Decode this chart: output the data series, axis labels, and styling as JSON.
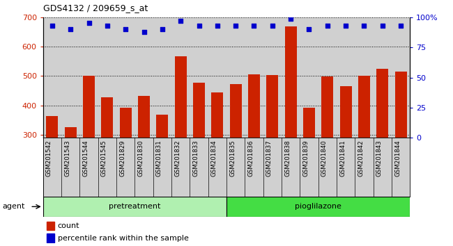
{
  "title": "GDS4132 / 209659_s_at",
  "samples": [
    "GSM201542",
    "GSM201543",
    "GSM201544",
    "GSM201545",
    "GSM201829",
    "GSM201830",
    "GSM201831",
    "GSM201832",
    "GSM201833",
    "GSM201834",
    "GSM201835",
    "GSM201836",
    "GSM201837",
    "GSM201838",
    "GSM201839",
    "GSM201840",
    "GSM201841",
    "GSM201842",
    "GSM201843",
    "GSM201844"
  ],
  "counts": [
    365,
    325,
    500,
    428,
    393,
    433,
    368,
    567,
    478,
    445,
    472,
    505,
    504,
    668,
    393,
    498,
    465,
    500,
    525,
    516
  ],
  "percentile": [
    93,
    90,
    95,
    93,
    90,
    88,
    90,
    97,
    93,
    93,
    93,
    93,
    93,
    99,
    90,
    93,
    93,
    93,
    93,
    93
  ],
  "group_split": 10,
  "group_labels": [
    "pretreatment",
    "pioglilazone"
  ],
  "group_color_light": "#b0f0b0",
  "group_color_dark": "#44dd44",
  "ylim_left": [
    290,
    700
  ],
  "ylim_right": [
    0,
    100
  ],
  "yticks_left": [
    300,
    400,
    500,
    600,
    700
  ],
  "yticks_right": [
    0,
    25,
    50,
    75,
    100
  ],
  "bar_color": "#cc2200",
  "dot_color": "#0000cc",
  "bg_color": "#d0d0d0",
  "legend_count_label": "count",
  "legend_pct_label": "percentile rank within the sample",
  "agent_label": "agent",
  "figsize": [
    6.5,
    3.54
  ],
  "dpi": 100
}
